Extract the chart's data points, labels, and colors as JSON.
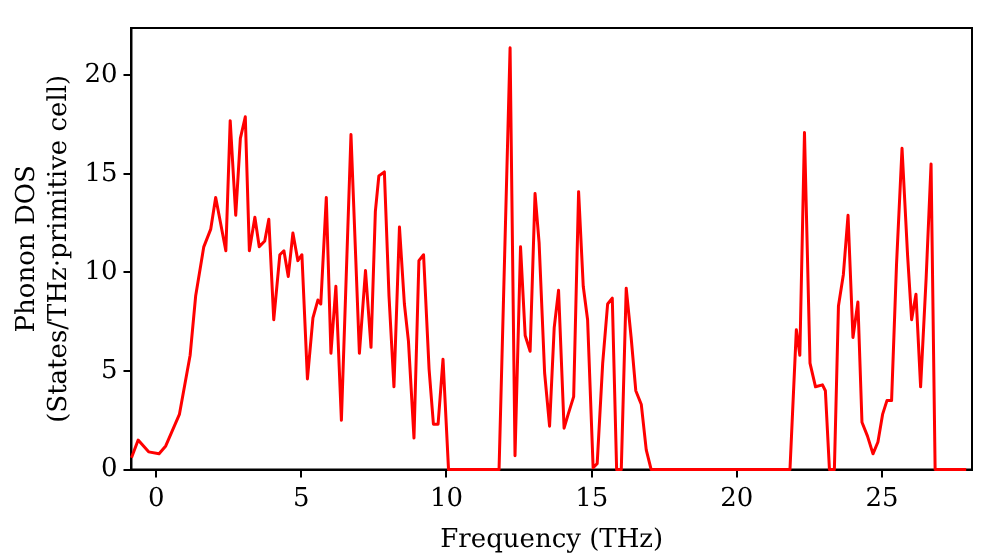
{
  "chart_data": {
    "type": "line",
    "xlabel": "Frequency (THz)",
    "ylabel": "Phonon DOS\n(States/THz·primitive cell)",
    "xlim": [
      -0.85,
      28.1
    ],
    "xticks": [
      0,
      5,
      10,
      15,
      20,
      25
    ],
    "ylim": [
      0,
      22.4
    ],
    "yticks": [
      0,
      5,
      10,
      15,
      20
    ],
    "grid": false,
    "legend": false,
    "marker": "none",
    "line_style": "solid",
    "series": [
      {
        "color": "#ff0000",
        "x": [
          -0.85,
          -0.62,
          -0.26,
          0.1,
          0.33,
          0.8,
          1.17,
          1.36,
          1.64,
          1.88,
          2.05,
          2.4,
          2.55,
          2.74,
          2.9,
          3.07,
          3.21,
          3.4,
          3.55,
          3.74,
          3.88,
          4.05,
          4.26,
          4.4,
          4.55,
          4.71,
          4.88,
          5.02,
          5.21,
          5.4,
          5.57,
          5.67,
          5.86,
          6.02,
          6.19,
          6.38,
          6.71,
          7.0,
          7.21,
          7.4,
          7.55,
          7.67,
          7.86,
          8.02,
          8.19,
          8.38,
          8.55,
          8.69,
          8.88,
          9.05,
          9.21,
          9.4,
          9.55,
          9.71,
          9.88,
          10.07,
          11.81,
          12.19,
          12.36,
          12.55,
          12.71,
          12.88,
          13.05,
          13.19,
          13.38,
          13.55,
          13.71,
          13.86,
          14.05,
          14.19,
          14.38,
          14.55,
          14.71,
          14.86,
          15.05,
          15.19,
          15.38,
          15.55,
          15.71,
          15.86,
          16.02,
          16.19,
          16.36,
          16.52,
          16.71,
          16.88,
          17.05,
          21.83,
          22.05,
          22.17,
          22.33,
          22.52,
          22.71,
          22.95,
          23.05,
          23.19,
          23.36,
          23.5,
          23.67,
          23.83,
          24.0,
          24.17,
          24.31,
          24.5,
          24.69,
          24.86,
          25.02,
          25.17,
          25.33,
          25.5,
          25.69,
          25.88,
          26.02,
          26.17,
          26.33,
          26.52,
          26.69,
          26.83,
          27.9
        ],
        "values": [
          0.6,
          1.5,
          0.9,
          0.8,
          1.2,
          2.8,
          5.8,
          8.8,
          11.3,
          12.2,
          13.8,
          11.1,
          17.7,
          12.9,
          16.8,
          17.9,
          11.1,
          12.8,
          11.3,
          11.6,
          12.7,
          7.6,
          10.9,
          11.1,
          9.8,
          12.0,
          10.6,
          10.9,
          4.6,
          7.7,
          8.6,
          8.4,
          13.8,
          5.9,
          9.3,
          2.5,
          17.0,
          5.9,
          10.1,
          6.2,
          13.1,
          14.9,
          15.1,
          8.8,
          4.2,
          12.3,
          8.4,
          6.5,
          1.6,
          10.6,
          10.9,
          5.1,
          2.3,
          2.3,
          5.6,
          0,
          0,
          21.4,
          0.7,
          11.3,
          6.8,
          6.0,
          14.0,
          11.5,
          4.9,
          2.2,
          7.2,
          9.1,
          2.1,
          2.8,
          3.7,
          14.1,
          9.3,
          7.6,
          0.1,
          0.3,
          5.4,
          8.4,
          8.7,
          0,
          0,
          9.2,
          6.7,
          4.0,
          3.3,
          1.0,
          0,
          0,
          7.1,
          5.8,
          17.1,
          5.4,
          4.2,
          4.3,
          4.0,
          0,
          0,
          8.3,
          9.9,
          12.9,
          6.7,
          8.5,
          2.4,
          1.7,
          0.8,
          1.4,
          2.8,
          3.5,
          3.5,
          10.4,
          16.3,
          10.9,
          7.6,
          8.9,
          4.2,
          9.7,
          15.5,
          0,
          0
        ]
      }
    ]
  }
}
